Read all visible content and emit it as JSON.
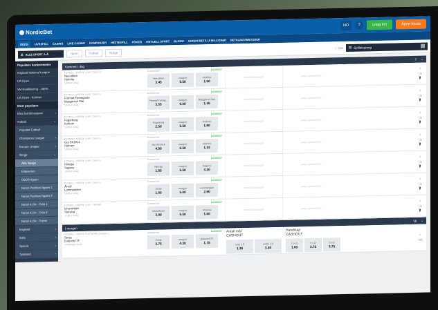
{
  "brand": {
    "name": "NordicBet",
    "accent": "#0b5ea8",
    "login_color": "#39b54a",
    "open_color": "#f47b20"
  },
  "header": {
    "lang": "NO",
    "help": "?",
    "login": "Logg inn",
    "open_account": "Åpne konto"
  },
  "nav": [
    "ODDS",
    "LIVESPILL",
    "CASINO",
    "LIVE CASINO",
    "KAMPANJER",
    "HESTESPILL",
    "POKER",
    "VIRTUELL SPORT",
    "BLOGG",
    "NORDICBETS 10 MILLIONER",
    "BETALINGSMETODER"
  ],
  "toolbar": {
    "sport_box": "ALLE SPORT A-Å",
    "crumbs": [
      "Hjem",
      "Fotball",
      "Norge"
    ],
    "search": "Søk",
    "coupon": "Spillekupong"
  },
  "sidebar": [
    {
      "label": "Populære konkurranser",
      "type": "head"
    },
    {
      "label": "England National League",
      "type": "item"
    },
    {
      "label": "US Open",
      "type": "item"
    },
    {
      "label": "VM Kvalifisering - UEFA",
      "type": "item"
    },
    {
      "label": "US Open - Kvinner",
      "type": "item"
    },
    {
      "label": "Mest populære",
      "type": "head"
    },
    {
      "label": "Bliss kombinasjoner",
      "type": "item",
      "arrow": ">"
    },
    {
      "label": "Fotball",
      "type": "item",
      "arrow": "v"
    },
    {
      "label": "Populær Fotball",
      "type": "sub"
    },
    {
      "label": "Champions League",
      "type": "sub",
      "arrow": ">"
    },
    {
      "label": "Europa League",
      "type": "sub",
      "arrow": ">"
    },
    {
      "label": "Norge",
      "type": "sub",
      "arrow": "v"
    },
    {
      "label": "Alle Norge",
      "type": "selected"
    },
    {
      "label": "Eliteserien",
      "type": "sub2"
    },
    {
      "label": "OBOS-ligaen",
      "type": "sub2"
    },
    {
      "label": "Norsk Postfiord-ligaen 1",
      "type": "sub2"
    },
    {
      "label": "Norsk Postfiord-ligaen 2",
      "type": "sub2"
    },
    {
      "label": "Norsk 4.Div - Oslo 1",
      "type": "sub2"
    },
    {
      "label": "Norsk 4.Div - Oslo 2",
      "type": "sub2"
    },
    {
      "label": "Norsk 4.Div - Troms",
      "type": "sub2"
    },
    {
      "label": "England",
      "type": "sub",
      "arrow": ">"
    },
    {
      "label": "Italia",
      "type": "sub",
      "arrow": ">"
    },
    {
      "label": "Spania",
      "type": "sub",
      "arrow": ">"
    },
    {
      "label": "Tyskland",
      "type": "sub",
      "arrow": ">"
    }
  ],
  "sections": {
    "today": {
      "title": "Kommer i dag",
      "count": "7"
    },
    "tomorrow": {
      "title": "I morgen",
      "count": "10"
    }
  },
  "market_label": "Kampvinner",
  "cashout": "CASHOUT",
  "empty_label": "IKKE TILGJENGELIG",
  "events": [
    {
      "comp": "FOTBALL / NORSK 4.DIV - OSLO 1",
      "home": "Nesodden",
      "away": "Holmlia",
      "time": "19:00 (I DAG)",
      "o1l": "Nesodden",
      "o1": "3.45",
      "oxl": "uavgjort",
      "ox": "5.50",
      "o2l": "Holmlia",
      "o2": "1.50",
      "more": "+1"
    },
    {
      "comp": "FOTBALL / NORSK 4.DIV - OSLO 1",
      "home": "Fremad Famagusta",
      "away": "Manglerud Star",
      "time": "19:00 (I DAG)",
      "o1l": "Fremad Famag...",
      "o1": "3.55",
      "oxl": "uavgjort",
      "ox": "6.00",
      "o2l": "Manglerud Star",
      "o2": "1.45",
      "more": "+1"
    },
    {
      "comp": "FOTBALL / NORSK 4.DIV - OSLO 1",
      "home": "Fagerborg",
      "away": "Kolbotn",
      "time": "19:00 (I DAG)",
      "o1l": "Fagerborg",
      "o1": "2.50",
      "oxl": "uavgjort",
      "ox": "5.50",
      "o2l": "Kolbotn",
      "o2": "1.80",
      "more": "+1"
    },
    {
      "comp": "FOTBALL / NORSK 4.DIV - OSLO 2",
      "home": "Gui SK1914",
      "away": "Holmen",
      "time": "19:00 (I DAG)",
      "o1l": "Gui SK1914",
      "o1": "4.50",
      "oxl": "uavgjort",
      "ox": "6.50",
      "o2l": "Holmen",
      "o2": "1.33",
      "more": "+1"
    },
    {
      "comp": "FOTBALL / NORSK 4.DIV - OSLO 2",
      "home": "Rilindja",
      "away": "Sagene",
      "time": "19:00 (I DAG)",
      "o1l": "Rilindja",
      "o1": "1.55",
      "oxl": "uavgjort",
      "ox": "5.50",
      "o2l": "Sagene",
      "o2": "3.20",
      "more": "+1"
    },
    {
      "comp": "FOTBALL / NORSK 4.DIV - OSLO 2",
      "home": "Årvoll",
      "away": "Lommedalen",
      "time": "19:00 (I DAG)",
      "o1l": "Årvoll",
      "o1": "1.60",
      "oxl": "uavgjort",
      "ox": "5.00",
      "o2l": "Lommedalen",
      "o2": "2.90",
      "more": "+1"
    },
    {
      "comp": "FOTBALL / NORSK 4.DIV - TROMS",
      "home": "Ishavsbyen",
      "away": "Storelva",
      "time": "21:00 (I DAG)",
      "o1l": "Ishavsbyen",
      "o1": "3.00",
      "oxl": "uavgjort",
      "ox": "5.50",
      "o2l": "Storelva",
      "o2": "1.60",
      "more": "+1"
    }
  ],
  "tomorrow_event": {
    "comp": "FOTBALL / NORSK POSTNORD-LIGAEN 1",
    "home": "Senja",
    "away": "Eidsvold TF",
    "time": "I MORGEN 18:00",
    "o1l": "Senja",
    "o1": "3.75",
    "oxl": "uavgjort",
    "ox": "4.20",
    "o2l": "Eidsvold TF",
    "o2": "1.75",
    "m2": "Antall mål",
    "u1l": "over 2.5",
    "u1": "1.36",
    "u2l": "under 2.5",
    "u2": "3.00",
    "m3": "Handikap",
    "h1l": "1 (+1)",
    "h1": "1.60",
    "h2l": "X (-1)",
    "h2": "3.75",
    "h3l": "2 (-1)",
    "h3": "3.75",
    "more": "+22"
  }
}
